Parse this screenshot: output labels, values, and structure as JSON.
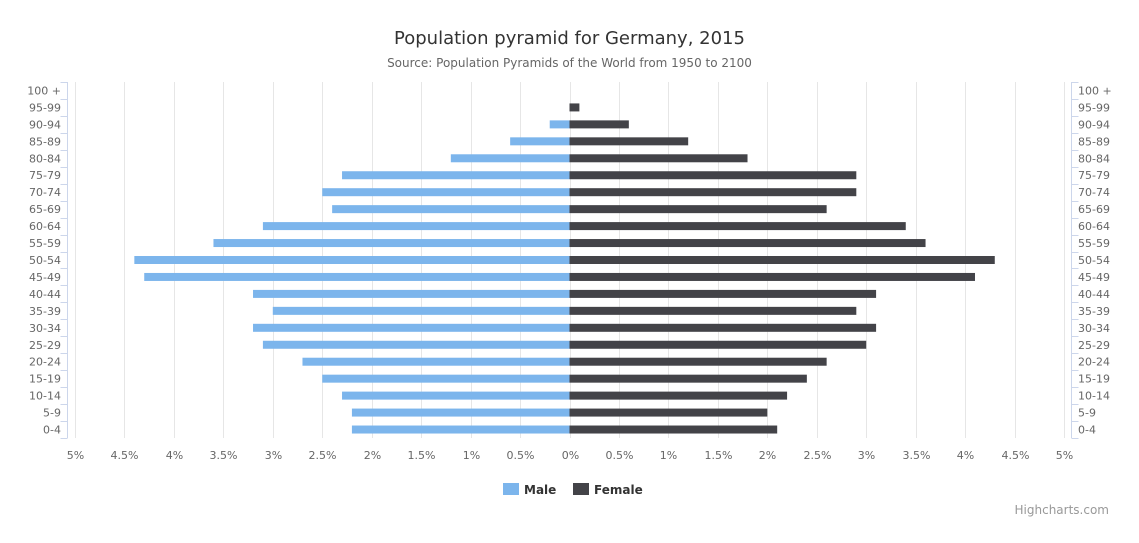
{
  "chart_data": {
    "type": "bar",
    "orientation": "horizontal",
    "layout": "population-pyramid",
    "title": "Population pyramid for Germany, 2015",
    "subtitle": "Source: Population Pyramids of the World from 1950 to 2100",
    "categories": [
      "0-4",
      "5-9",
      "10-14",
      "15-19",
      "20-24",
      "25-29",
      "30-34",
      "35-39",
      "40-44",
      "45-49",
      "50-54",
      "55-59",
      "60-64",
      "65-69",
      "70-74",
      "75-79",
      "80-84",
      "85-89",
      "90-94",
      "95-99",
      "100 +"
    ],
    "series": [
      {
        "name": "Male",
        "color": "#7cb5ec",
        "side": "left",
        "values": [
          2.2,
          2.2,
          2.3,
          2.5,
          2.7,
          3.1,
          3.2,
          3.0,
          3.2,
          4.3,
          4.4,
          3.6,
          3.1,
          2.4,
          2.5,
          2.3,
          1.2,
          0.6,
          0.2,
          0.0,
          0.0
        ]
      },
      {
        "name": "Female",
        "color": "#434348",
        "side": "right",
        "values": [
          2.1,
          2.0,
          2.2,
          2.4,
          2.6,
          3.0,
          3.1,
          2.9,
          3.1,
          4.1,
          4.3,
          3.6,
          3.4,
          2.6,
          2.9,
          2.9,
          1.8,
          1.2,
          0.6,
          0.1,
          0.0
        ]
      }
    ],
    "xlim": [
      -5,
      5
    ],
    "x_ticks": [
      -5,
      -4.5,
      -4,
      -3.5,
      -3,
      -2.5,
      -2,
      -1.5,
      -1,
      -0.5,
      0,
      0.5,
      1,
      1.5,
      2,
      2.5,
      3,
      3.5,
      4,
      4.5,
      5
    ],
    "x_tick_labels": [
      "5%",
      "4.5%",
      "4%",
      "3.5%",
      "3%",
      "2.5%",
      "2%",
      "1.5%",
      "1%",
      "0.5%",
      "0%",
      "0.5%",
      "1%",
      "1.5%",
      "2%",
      "2.5%",
      "3%",
      "3.5%",
      "4%",
      "4.5%",
      "5%"
    ],
    "grid": true,
    "legend": {
      "position": "bottom-center",
      "items": [
        "Male",
        "Female"
      ]
    },
    "credits": "Highcharts.com"
  }
}
